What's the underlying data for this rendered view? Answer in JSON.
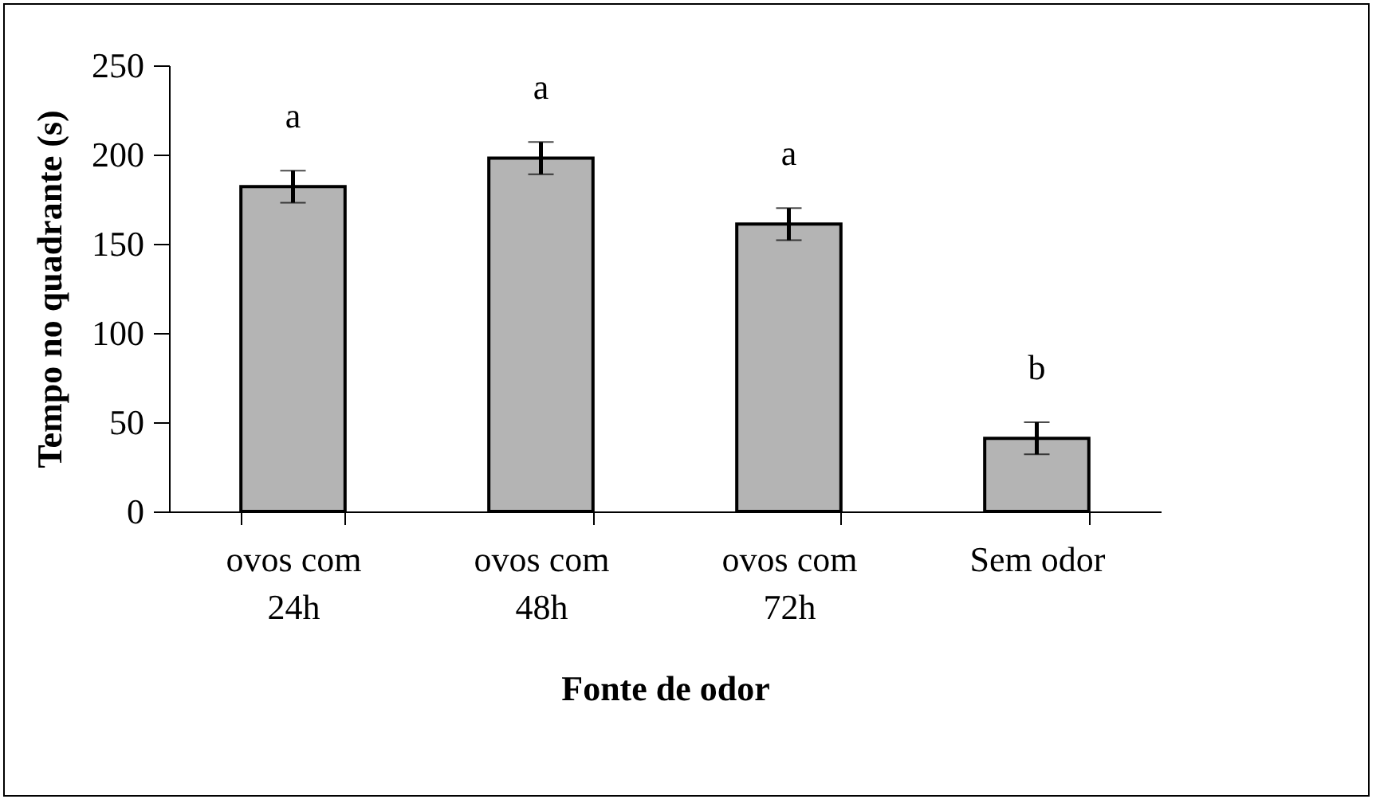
{
  "chart_data": {
    "type": "bar",
    "xlabel": "Fonte de odor",
    "ylabel": "Tempo no quadrante (s)",
    "categories": [
      "ovos com\n24h",
      "ovos com\n48h",
      "ovos com\n72h",
      "Sem odor"
    ],
    "values": [
      182,
      198,
      161,
      41
    ],
    "errors": [
      9,
      9,
      9,
      9
    ],
    "color": "#b4b4b4",
    "ylim": [
      0,
      250
    ],
    "yticks": [
      0,
      50,
      100,
      150,
      200,
      250
    ],
    "annotations": [
      "a",
      "a",
      "a",
      "b"
    ]
  }
}
